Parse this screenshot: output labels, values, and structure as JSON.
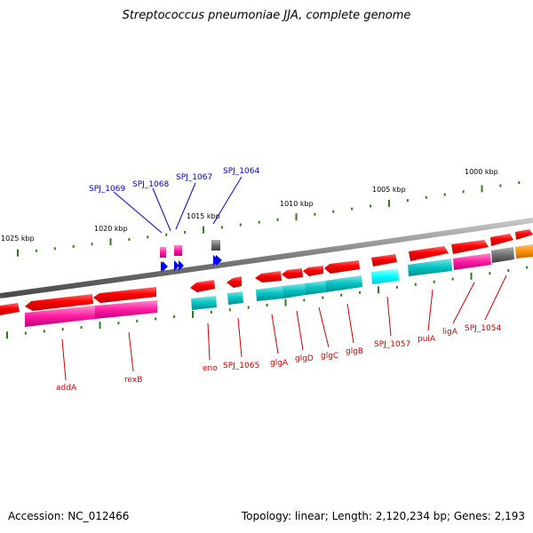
{
  "title": "Streptococcus pneumoniae JJA, complete genome",
  "footer": {
    "accession": "Accession: NC_012466",
    "summary": "Topology: linear; Length: 2,120,234 bp; Genes: 2,193"
  },
  "colors": {
    "backbone": "#8c8c8c",
    "tick": "#2e7d1a",
    "cds": "#ff0000",
    "cds_dark": "#b00000",
    "gene_cyan": "#00c2c2",
    "gene_magenta": "#ff1aa0",
    "gene_gray": "#707070",
    "gene_orange": "#ff9000",
    "label_top": "#0000cc",
    "label_bottom": "#cc0000",
    "trna": "#0000ff"
  },
  "kbp_labels": [
    "1025 kbp",
    "1020 kbp",
    "1015 kbp",
    "1010 kbp",
    "1005 kbp",
    "1000 kbp"
  ],
  "top_labels": [
    "SPJ_1069",
    "SPJ_1068",
    "SPJ_1067",
    "SPJ_1064"
  ],
  "bottom_labels": [
    "addA",
    "rexB",
    "eno",
    "SPJ_1065",
    "glgA",
    "glgD",
    "glgC",
    "glgB",
    "SPJ_1057",
    "pulA",
    "ligA",
    "SPJ_1054"
  ]
}
